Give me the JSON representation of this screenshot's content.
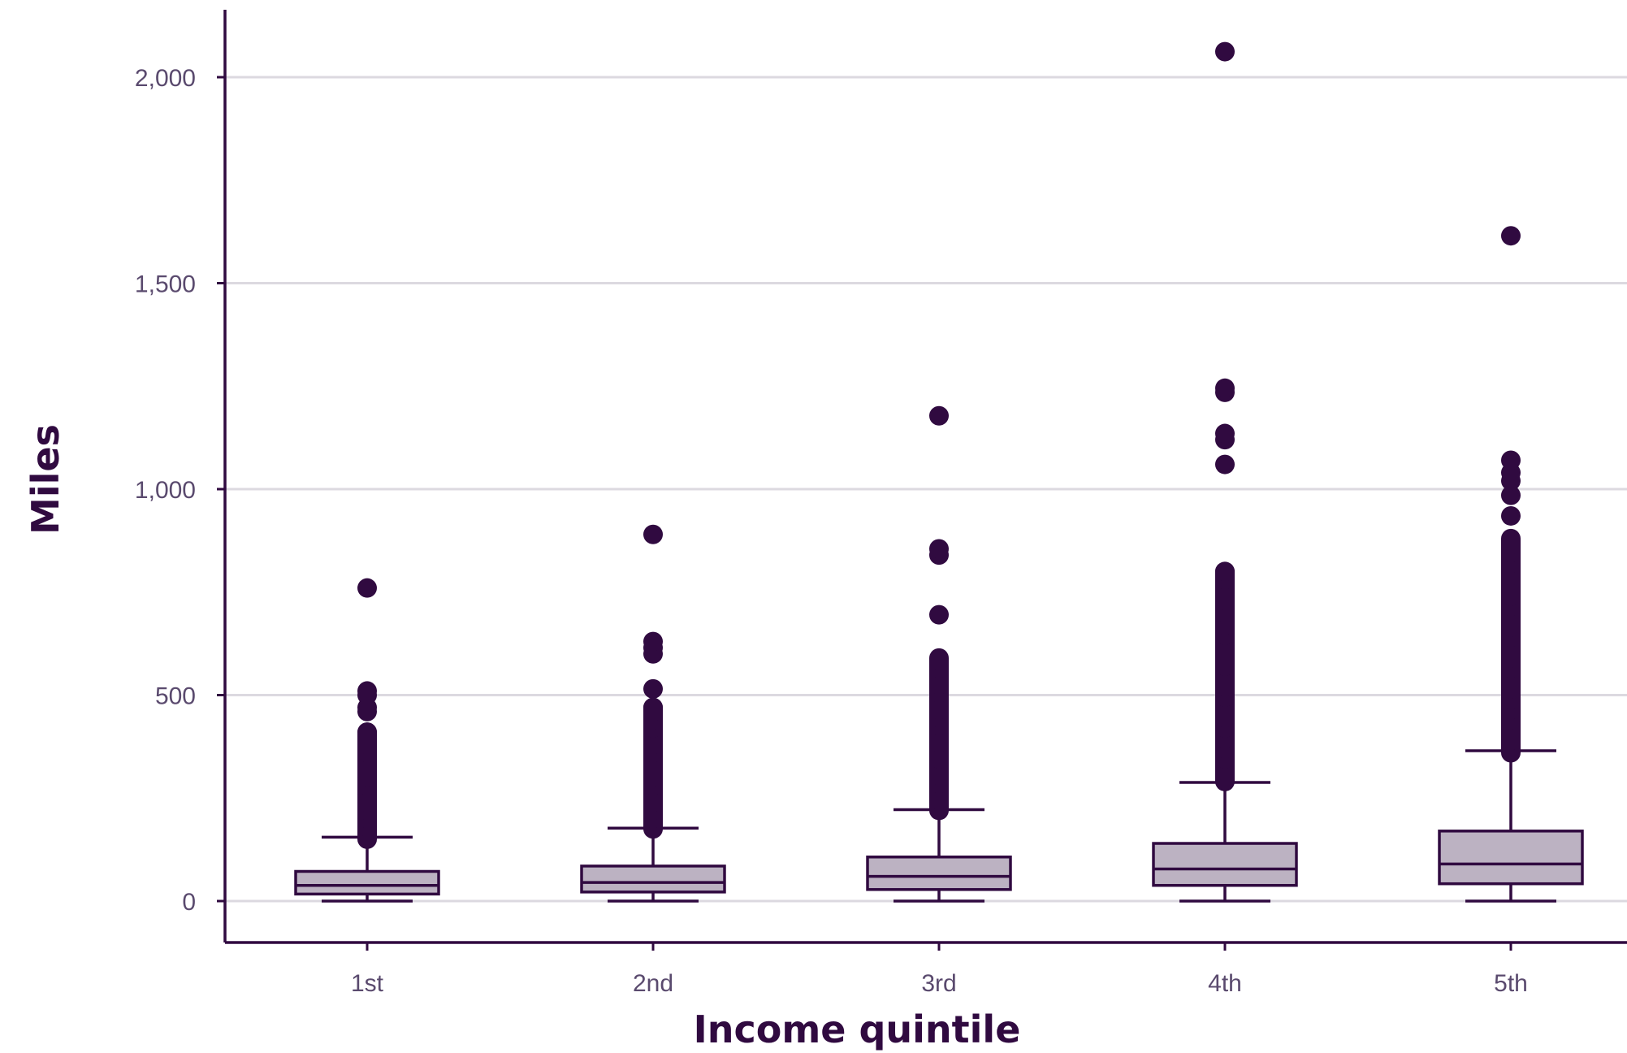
{
  "chart_data": {
    "type": "box",
    "title": "",
    "xlabel": "Income quintile",
    "ylabel": "Miles",
    "categories": [
      "1st",
      "2nd",
      "3rd",
      "4th",
      "5th"
    ],
    "ylim": [
      -100,
      2170
    ],
    "yticks": [
      0,
      500,
      1000,
      1500,
      2000
    ],
    "ytick_labels": [
      "0",
      "500",
      "1,000",
      "1,500",
      "2,000"
    ],
    "grid": "horizontal",
    "colors": {
      "box_fill": "#bcb2c2",
      "stroke": "#300a40",
      "outlier": "#300a40",
      "grid": "#dcd9e0",
      "tick_text": "#5a4a6e"
    },
    "boxes": [
      {
        "category": "1st",
        "whisker_low": 0,
        "q1": 17,
        "median": 38,
        "q3": 72,
        "whisker_high": 155,
        "outlier_range": [
          150,
          410
        ],
        "outliers": [
          160,
          180,
          200,
          220,
          240,
          260,
          280,
          300,
          320,
          340,
          360,
          380,
          400,
          410,
          460,
          470,
          500,
          510,
          760
        ]
      },
      {
        "category": "2nd",
        "whisker_low": 0,
        "q1": 22,
        "median": 45,
        "q3": 85,
        "whisker_high": 177,
        "outlier_range": [
          175,
          470
        ],
        "outliers": [
          180,
          200,
          220,
          240,
          260,
          280,
          300,
          320,
          340,
          360,
          380,
          400,
          420,
          440,
          460,
          470,
          515,
          600,
          615,
          630,
          890
        ]
      },
      {
        "category": "3rd",
        "whisker_low": 0,
        "q1": 28,
        "median": 60,
        "q3": 107,
        "whisker_high": 222,
        "outlier_range": [
          220,
          590
        ],
        "outliers": [
          225,
          245,
          265,
          285,
          305,
          325,
          345,
          365,
          385,
          405,
          425,
          445,
          465,
          485,
          505,
          525,
          545,
          565,
          585,
          695,
          840,
          855,
          1178
        ]
      },
      {
        "category": "4th",
        "whisker_low": 0,
        "q1": 38,
        "median": 78,
        "q3": 140,
        "whisker_high": 288,
        "outlier_range": [
          290,
          800
        ],
        "outliers": [
          295,
          320,
          345,
          370,
          395,
          420,
          445,
          470,
          495,
          520,
          545,
          570,
          595,
          620,
          645,
          670,
          700,
          730,
          760,
          780,
          800,
          1060,
          1120,
          1135,
          1235,
          1245,
          2062
        ]
      },
      {
        "category": "5th",
        "whisker_low": 0,
        "q1": 42,
        "median": 90,
        "q3": 170,
        "whisker_high": 365,
        "outlier_range": [
          360,
          880
        ],
        "outliers": [
          365,
          390,
          415,
          440,
          465,
          490,
          515,
          540,
          565,
          590,
          615,
          640,
          665,
          690,
          715,
          740,
          765,
          790,
          820,
          845,
          865,
          935,
          985,
          1020,
          1040,
          1070,
          1615
        ]
      }
    ]
  }
}
